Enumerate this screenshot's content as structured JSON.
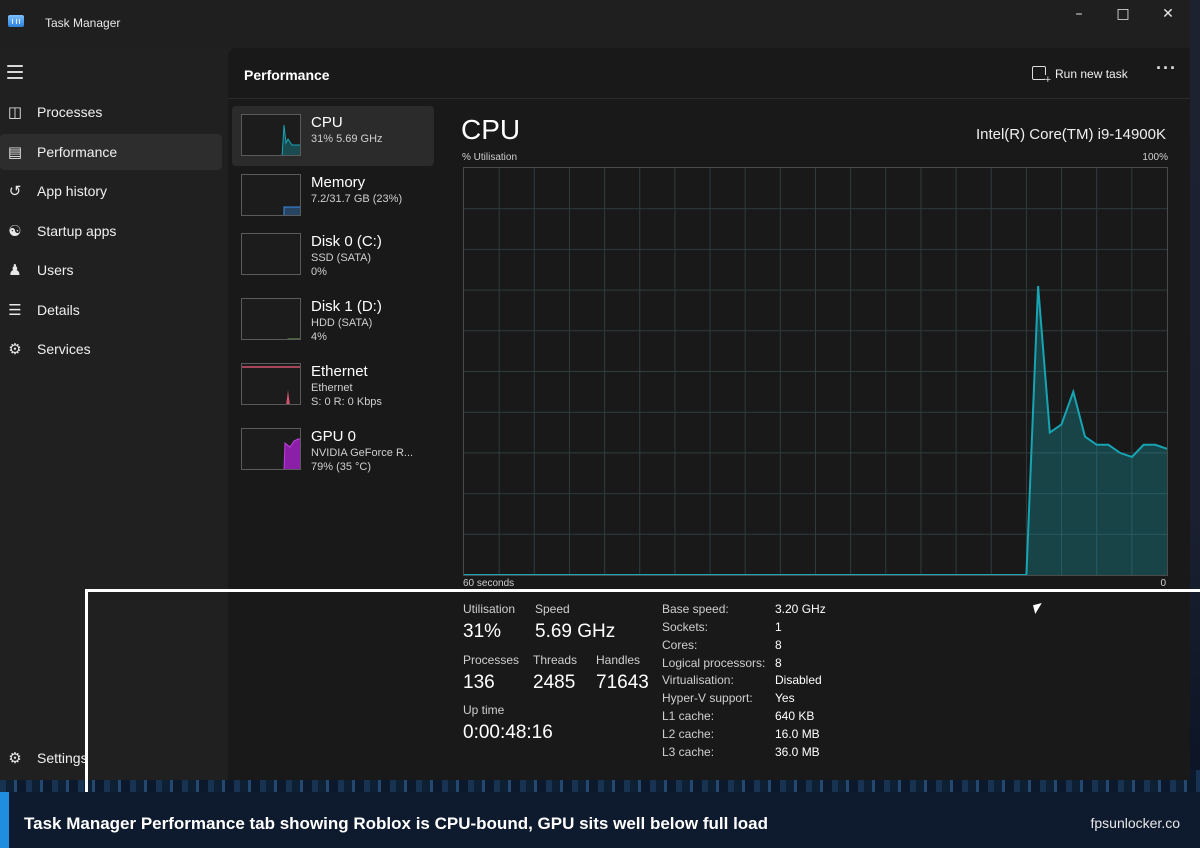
{
  "window": {
    "title": "Task Manager"
  },
  "nav": {
    "items": [
      {
        "label": "Processes",
        "icon": "processes-icon"
      },
      {
        "label": "Performance",
        "icon": "performance-icon"
      },
      {
        "label": "App history",
        "icon": "app-history-icon"
      },
      {
        "label": "Startup apps",
        "icon": "startup-apps-icon"
      },
      {
        "label": "Users",
        "icon": "users-icon"
      },
      {
        "label": "Details",
        "icon": "details-icon"
      },
      {
        "label": "Services",
        "icon": "services-icon"
      }
    ],
    "settings_label": "Settings"
  },
  "header": {
    "title": "Performance",
    "run_new_task": "Run new task"
  },
  "resources": [
    {
      "name": "CPU",
      "line1": "31%  5.69 GHz",
      "line2": "",
      "color": "#17a4b3"
    },
    {
      "name": "Memory",
      "line1": "7.2/31.7 GB (23%)",
      "line2": "",
      "color": "#3a8ee6"
    },
    {
      "name": "Disk 0 (C:)",
      "line1": "SSD (SATA)",
      "line2": "0%",
      "color": "#6aa84f"
    },
    {
      "name": "Disk 1 (D:)",
      "line1": "HDD (SATA)",
      "line2": "4%",
      "color": "#6aa84f"
    },
    {
      "name": "Ethernet",
      "line1": "Ethernet",
      "line2": "S: 0  R: 0 Kbps",
      "color": "#d4556e"
    },
    {
      "name": "GPU 0",
      "line1": "NVIDIA GeForce R...",
      "line2": "79%  (35 °C)",
      "color": "#a020c0"
    }
  ],
  "cpu": {
    "title": "CPU",
    "model": "Intel(R) Core(TM) i9-14900K",
    "util_label": "% Utilisation",
    "util_max": "100%",
    "time_label": "60 seconds",
    "time_end": "0",
    "stats": {
      "utilisation_label": "Utilisation",
      "utilisation": "31%",
      "speed_label": "Speed",
      "speed": "5.69 GHz",
      "processes_label": "Processes",
      "processes": "136",
      "threads_label": "Threads",
      "threads": "2485",
      "handles_label": "Handles",
      "handles": "71643",
      "uptime_label": "Up time",
      "uptime": "0:00:48:16"
    },
    "info": [
      {
        "k": "Base speed:",
        "v": "3.20 GHz"
      },
      {
        "k": "Sockets:",
        "v": "1"
      },
      {
        "k": "Cores:",
        "v": "8"
      },
      {
        "k": "Logical processors:",
        "v": "8"
      },
      {
        "k": "Virtualisation:",
        "v": "Disabled"
      },
      {
        "k": "Hyper-V support:",
        "v": "Yes"
      },
      {
        "k": "L1 cache:",
        "v": "640 KB"
      },
      {
        "k": "L2 cache:",
        "v": "16.0 MB"
      },
      {
        "k": "L3 cache:",
        "v": "36.0 MB"
      }
    ],
    "graph_color": "#17a4b3",
    "graph_series": {
      "x_seconds_ago": [
        60,
        12,
        11,
        10,
        9,
        8,
        7,
        6,
        5,
        4,
        3,
        2,
        1,
        0
      ],
      "y_percent": [
        0,
        0,
        71,
        35,
        37,
        45,
        34,
        32,
        32,
        30,
        29,
        32,
        32,
        31
      ]
    }
  },
  "caption": {
    "text": "Task Manager Performance tab showing Roblox is CPU-bound, GPU sits well below full load",
    "site": "fpsunlocker.co"
  }
}
